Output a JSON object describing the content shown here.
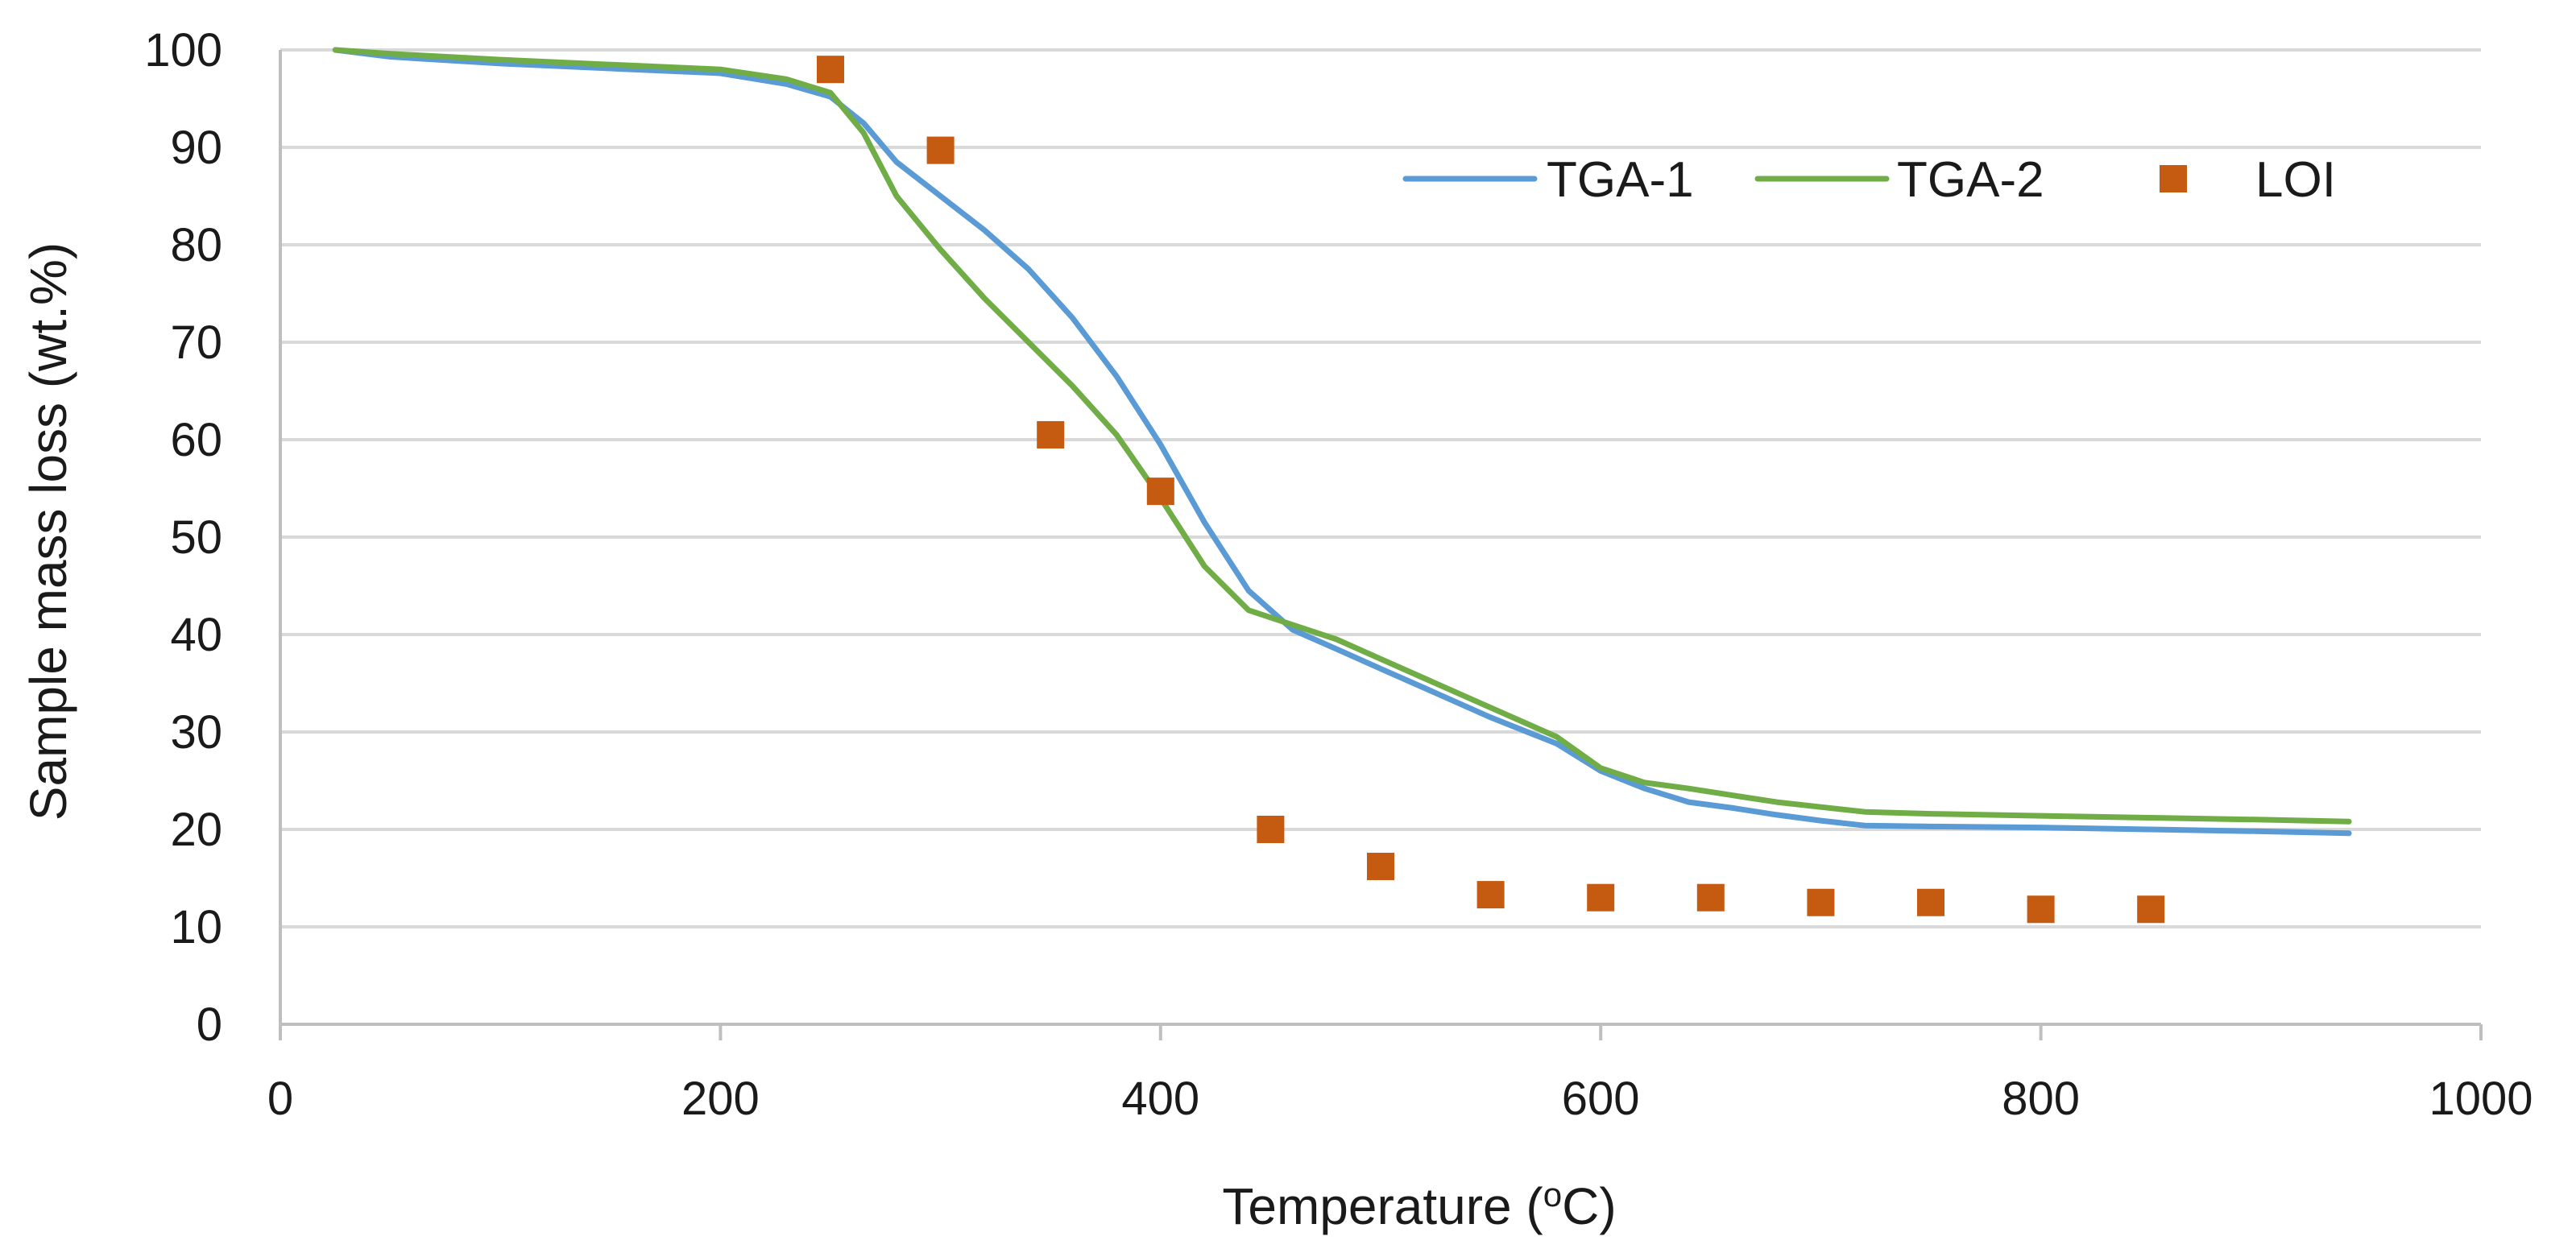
{
  "chart_data": {
    "type": "line",
    "title": "",
    "xlabel": "Temperature",
    "xlabel_unit_prefix": "o",
    "xlabel_unit": "C",
    "ylabel": "Sample mass loss (wt.%)",
    "xlim": [
      0,
      1000
    ],
    "ylim": [
      0,
      100
    ],
    "x_ticks": [
      0,
      200,
      400,
      600,
      800,
      1000
    ],
    "y_ticks": [
      0,
      10,
      20,
      30,
      40,
      50,
      60,
      70,
      80,
      90,
      100
    ],
    "grid": true,
    "legend_position": "top-right",
    "series": [
      {
        "name": "TGA-1",
        "kind": "line",
        "color": "#5b9bd5",
        "x": [
          25,
          50,
          100,
          150,
          200,
          230,
          250,
          265,
          280,
          300,
          320,
          340,
          360,
          380,
          400,
          420,
          440,
          460,
          480,
          500,
          520,
          550,
          580,
          600,
          620,
          640,
          660,
          680,
          700,
          720,
          750,
          800,
          850,
          900,
          940
        ],
        "y": [
          100,
          99.3,
          98.6,
          98.1,
          97.6,
          96.5,
          95.2,
          92.5,
          88.5,
          85.0,
          81.5,
          77.5,
          72.5,
          66.5,
          59.5,
          51.5,
          44.5,
          40.5,
          38.5,
          36.5,
          34.5,
          31.5,
          28.8,
          26.0,
          24.2,
          22.8,
          22.2,
          21.5,
          20.9,
          20.4,
          20.3,
          20.2,
          20.0,
          19.8,
          19.6
        ]
      },
      {
        "name": "TGA-2",
        "kind": "line",
        "color": "#70ad47",
        "x": [
          25,
          50,
          100,
          150,
          200,
          230,
          250,
          265,
          280,
          300,
          320,
          340,
          360,
          380,
          400,
          420,
          440,
          460,
          480,
          500,
          520,
          550,
          580,
          600,
          620,
          640,
          660,
          680,
          700,
          720,
          750,
          800,
          850,
          900,
          940
        ],
        "y": [
          100,
          99.6,
          99.0,
          98.5,
          98.0,
          97.0,
          95.6,
          91.5,
          85.0,
          79.5,
          74.5,
          70.0,
          65.5,
          60.5,
          54.0,
          47.0,
          42.5,
          41.0,
          39.5,
          37.5,
          35.5,
          32.5,
          29.5,
          26.3,
          24.8,
          24.2,
          23.5,
          22.8,
          22.3,
          21.8,
          21.6,
          21.4,
          21.2,
          21.0,
          20.8
        ]
      },
      {
        "name": "LOI",
        "kind": "scatter",
        "color": "#c55a11",
        "x": [
          250,
          300,
          350,
          400,
          450,
          500,
          550,
          600,
          650,
          700,
          750,
          800,
          850
        ],
        "y": [
          98.0,
          89.7,
          60.5,
          54.7,
          20.0,
          16.2,
          13.3,
          13.0,
          13.0,
          12.5,
          12.5,
          11.8,
          11.8
        ]
      }
    ]
  }
}
